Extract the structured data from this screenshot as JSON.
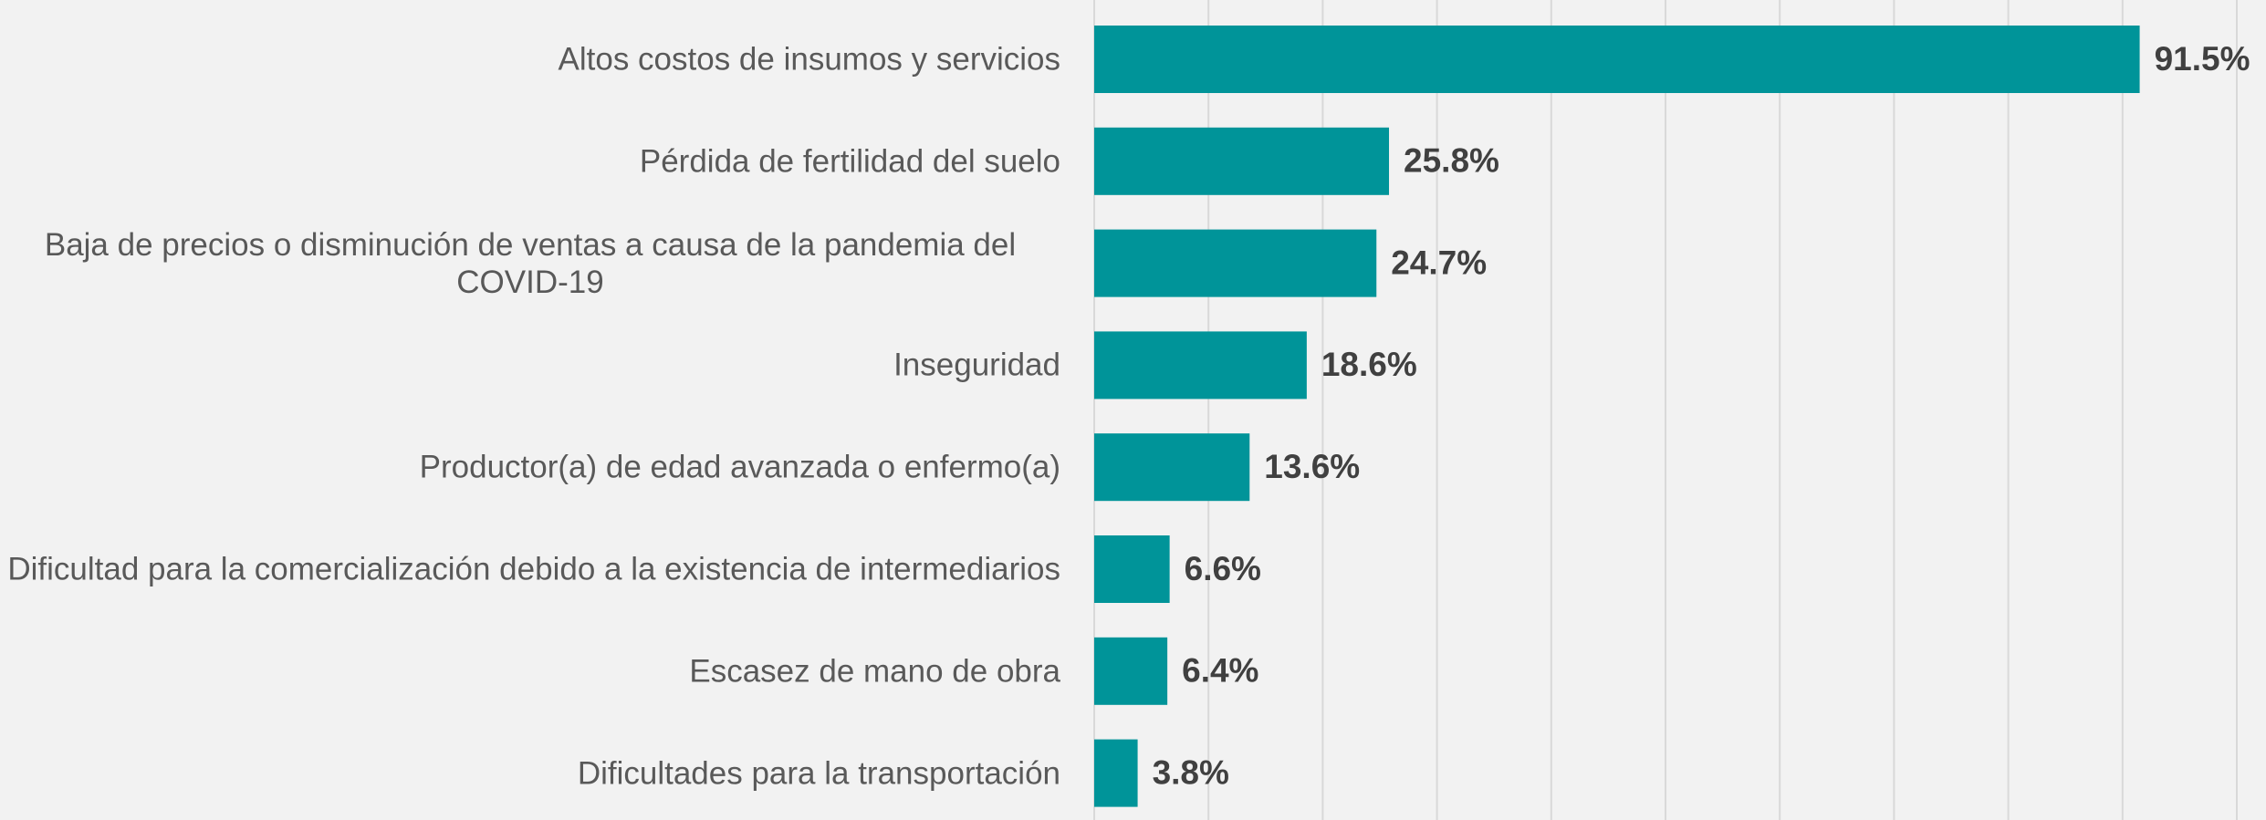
{
  "chart_data": {
    "type": "bar",
    "orientation": "horizontal",
    "categories": [
      "Altos costos de insumos y servicios",
      "Pérdida de fertilidad del suelo",
      "Baja de precios o disminución de ventas a causa de la pandemia del COVID-19",
      "Inseguridad",
      "Productor(a) de edad avanzada o enfermo(a)",
      "Dificultad para la comercialización debido a la existencia de intermediarios",
      "Escasez de mano de obra",
      "Dificultades para la transportación"
    ],
    "values": [
      91.5,
      25.8,
      24.7,
      18.6,
      13.6,
      6.6,
      6.4,
      3.8
    ],
    "value_labels": [
      "91.5%",
      "25.8%",
      "24.7%",
      "18.6%",
      "13.6%",
      "6.6%",
      "6.4%",
      "3.8%"
    ],
    "color": "#009499",
    "xlim": [
      0,
      100
    ],
    "xticks": [
      0,
      10,
      20,
      30,
      40,
      50,
      60,
      70,
      80,
      90,
      100
    ],
    "grid": true
  }
}
